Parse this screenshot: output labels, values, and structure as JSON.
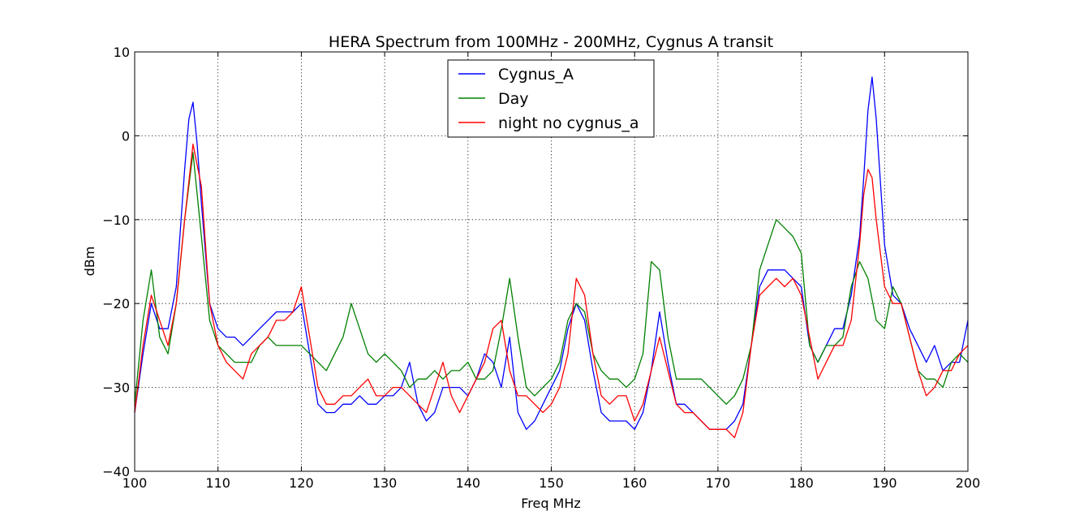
{
  "chart_data": {
    "type": "line",
    "title": "HERA Spectrum from 100MHz - 200MHz, Cygnus A transit",
    "xlabel": "Freq MHz",
    "ylabel": "dBm",
    "xlim": [
      100,
      200
    ],
    "ylim": [
      -40,
      10
    ],
    "xticks": [
      100,
      110,
      120,
      130,
      140,
      150,
      160,
      170,
      180,
      190,
      200
    ],
    "yticks": [
      -40,
      -30,
      -20,
      -10,
      0,
      10
    ],
    "grid": true,
    "legend": "upper-center",
    "series": [
      {
        "name": "Cygnus_A",
        "color": "#0000ff",
        "x": [
          100,
          101,
          102,
          103,
          104,
          105,
          106,
          106.5,
          107,
          107.5,
          108,
          109,
          110,
          111,
          112,
          113,
          114,
          115,
          116,
          117,
          118,
          119,
          120,
          121,
          122,
          123,
          124,
          125,
          126,
          127,
          128,
          129,
          130,
          131,
          132,
          133,
          134,
          135,
          136,
          137,
          138,
          139,
          140,
          141,
          142,
          143,
          144,
          145,
          146,
          147,
          148,
          149,
          150,
          151,
          152,
          153,
          154,
          155,
          156,
          157,
          158,
          159,
          160,
          161,
          162,
          163,
          164,
          165,
          166,
          167,
          168,
          169,
          170,
          171,
          172,
          173,
          174,
          175,
          176,
          177,
          178,
          179,
          180,
          181,
          182,
          183,
          184,
          185,
          186,
          187,
          187.5,
          188,
          188.5,
          189,
          190,
          191,
          192,
          193,
          194,
          195,
          196,
          197,
          198,
          199,
          200
        ],
        "y": [
          -33,
          -26,
          -20,
          -23,
          -23,
          -18,
          -4,
          2,
          4,
          -1,
          -8,
          -20,
          -23,
          -24,
          -24,
          -25,
          -24,
          -23,
          -22,
          -21,
          -21,
          -21,
          -20,
          -26,
          -32,
          -33,
          -33,
          -32,
          -32,
          -31,
          -32,
          -32,
          -31,
          -31,
          -30,
          -27,
          -32,
          -34,
          -33,
          -30,
          -30,
          -30,
          -31,
          -29,
          -26,
          -27,
          -30,
          -24,
          -33,
          -35,
          -34,
          -32,
          -30,
          -28,
          -23,
          -20,
          -22,
          -28,
          -33,
          -34,
          -34,
          -34,
          -35,
          -33,
          -28,
          -21,
          -27,
          -32,
          -32,
          -33,
          -34,
          -35,
          -35,
          -35,
          -34,
          -32,
          -25,
          -18,
          -16,
          -16,
          -16,
          -17,
          -18,
          -25,
          -27,
          -25,
          -23,
          -23,
          -19,
          -12,
          -5,
          3,
          7,
          2,
          -13,
          -19,
          -20,
          -23,
          -25,
          -27,
          -25,
          -28,
          -27,
          -27,
          -22
        ]
      },
      {
        "name": "Day",
        "color": "#008000",
        "x": [
          100,
          101,
          102,
          103,
          104,
          105,
          106,
          107,
          108,
          109,
          110,
          111,
          112,
          113,
          114,
          115,
          116,
          117,
          118,
          119,
          120,
          121,
          122,
          123,
          124,
          125,
          126,
          127,
          128,
          129,
          130,
          131,
          132,
          133,
          134,
          135,
          136,
          137,
          138,
          139,
          140,
          141,
          142,
          143,
          144,
          145,
          146,
          147,
          148,
          149,
          150,
          151,
          152,
          153,
          154,
          155,
          156,
          157,
          158,
          159,
          160,
          161,
          162,
          163,
          164,
          165,
          166,
          167,
          168,
          169,
          170,
          171,
          172,
          173,
          174,
          175,
          176,
          177,
          178,
          179,
          180,
          181,
          182,
          183,
          184,
          185,
          186,
          187,
          188,
          189,
          190,
          191,
          192,
          193,
          194,
          195,
          196,
          197,
          198,
          199,
          200
        ],
        "y": [
          -32,
          -22,
          -16,
          -24,
          -26,
          -20,
          -10,
          -2,
          -12,
          -22,
          -25,
          -26,
          -27,
          -27,
          -27,
          -25,
          -24,
          -25,
          -25,
          -25,
          -25,
          -26,
          -27,
          -28,
          -26,
          -24,
          -20,
          -23,
          -26,
          -27,
          -26,
          -27,
          -28,
          -30,
          -29,
          -29,
          -28,
          -29,
          -28,
          -28,
          -27,
          -29,
          -29,
          -28,
          -23,
          -17,
          -24,
          -30,
          -31,
          -30,
          -29,
          -27,
          -22,
          -20,
          -21,
          -26,
          -28,
          -29,
          -29,
          -30,
          -29,
          -26,
          -15,
          -16,
          -24,
          -29,
          -29,
          -29,
          -29,
          -30,
          -31,
          -32,
          -31,
          -29,
          -25,
          -16,
          -13,
          -10,
          -11,
          -12,
          -14,
          -25,
          -27,
          -25,
          -25,
          -24,
          -18,
          -15,
          -17,
          -22,
          -23,
          -18,
          -20,
          -24,
          -28,
          -29,
          -29,
          -30,
          -27,
          -26,
          -27
        ]
      },
      {
        "name": "night no cygnus_a",
        "color": "#ff0000",
        "x": [
          100,
          101,
          102,
          103,
          104,
          105,
          106,
          107,
          108,
          109,
          110,
          111,
          112,
          113,
          114,
          115,
          116,
          117,
          118,
          119,
          120,
          121,
          122,
          123,
          124,
          125,
          126,
          127,
          128,
          129,
          130,
          131,
          132,
          133,
          134,
          135,
          136,
          137,
          138,
          139,
          140,
          141,
          142,
          143,
          144,
          145,
          146,
          147,
          148,
          149,
          150,
          151,
          152,
          153,
          154,
          155,
          156,
          157,
          158,
          159,
          160,
          161,
          162,
          163,
          164,
          165,
          166,
          167,
          168,
          169,
          170,
          171,
          172,
          173,
          174,
          175,
          176,
          177,
          178,
          179,
          180,
          181,
          182,
          183,
          184,
          185,
          186,
          187,
          187.5,
          188,
          188.5,
          189,
          190,
          191,
          192,
          193,
          194,
          195,
          196,
          197,
          198,
          199,
          200
        ],
        "y": [
          -33,
          -25,
          -19,
          -22,
          -25,
          -20,
          -10,
          -1,
          -6,
          -20,
          -25,
          -27,
          -28,
          -29,
          -26,
          -25,
          -24,
          -22,
          -22,
          -21,
          -18,
          -24,
          -30,
          -32,
          -32,
          -31,
          -31,
          -30,
          -29,
          -31,
          -31,
          -30,
          -30,
          -31,
          -32,
          -33,
          -30,
          -27,
          -31,
          -33,
          -31,
          -29,
          -27,
          -23,
          -22,
          -28,
          -31,
          -31,
          -32,
          -33,
          -32,
          -30,
          -26,
          -17,
          -19,
          -26,
          -31,
          -32,
          -31,
          -31,
          -34,
          -32,
          -28,
          -24,
          -28,
          -32,
          -33,
          -33,
          -34,
          -35,
          -35,
          -35,
          -36,
          -33,
          -25,
          -19,
          -18,
          -17,
          -18,
          -17,
          -19,
          -24,
          -29,
          -27,
          -25,
          -25,
          -22,
          -13,
          -7,
          -4,
          -5,
          -10,
          -18,
          -20,
          -20,
          -24,
          -28,
          -31,
          -30,
          -28,
          -28,
          -26,
          -25
        ]
      }
    ]
  }
}
